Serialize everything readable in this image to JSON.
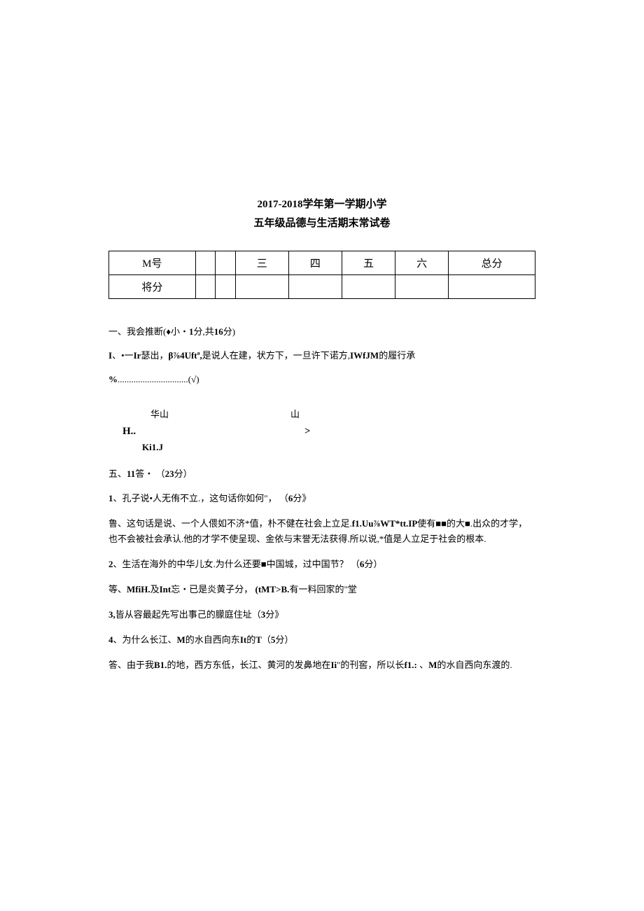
{
  "title": {
    "line1": "2017-2018学年第一学期小学",
    "line2": "五年级品德与生活期末常试卷"
  },
  "score_table": {
    "row1": [
      "M号",
      "",
      "",
      "三",
      "四",
      "五",
      "六",
      "总分"
    ],
    "row2": [
      "将分",
      "",
      "",
      "",
      "",
      "",
      "",
      ""
    ]
  },
  "section1": {
    "heading_prefix": "一、我会推断(♦小・",
    "heading_bold1": "1",
    "heading_mid": "分,共",
    "heading_bold2": "16",
    "heading_suffix": "分)"
  },
  "line_I": {
    "b1": "I",
    "t1": "、•一",
    "b2": "Ir",
    "t2": "瑟出，",
    "b3": "β⅞4Uftª,",
    "t3": "是说人在建，状方下，一旦许下诺方,",
    "b4": "IWfJM",
    "t4": "的履行承"
  },
  "line_pct": {
    "b1": "%",
    "t1": "...............................(√)"
  },
  "mountain": {
    "r1c1": "华山",
    "r1c2": "山",
    "r2c1": "H..",
    "r2c2": ">",
    "r3": "Ki1.J"
  },
  "section5": {
    "prefix": "五、",
    "b1": "11",
    "mid": "答・ （",
    "b2": "23",
    "suffix": "分）"
  },
  "q1": {
    "b1": "1",
    "t1": "、孔子说•人无侑不立.，这句话你如何\"，  （",
    "b2": "6",
    "t2": "分》"
  },
  "q1_ans": {
    "t1": "鲁、这句话是说、一个人偎如不济*值，朴不健在社会上立足.",
    "b1": "f1.Uu⅞WT*tt.IP",
    "t2": "使有■■的大■.出众的才学，也不会被社会承认.他的才学不使呈现、金依与末誉无法获得.所以说,*值是人立足于社会的根本."
  },
  "q2": {
    "b1": "2",
    "t1": "、生活在海外的中华儿女.为什么还要■中国城，过中国节？ （",
    "b2": "6",
    "t2": "分）"
  },
  "q2_ans": {
    "t1": "等、",
    "b1": "MfiH.",
    "t2": "及",
    "b2": "Int",
    "t3": "忘・已是炎黄子分，  ",
    "b3": "(tMT>B.",
    "t4": "有一料回家的\"堂"
  },
  "q3": {
    "b1": "3,",
    "t1": "皆从容最起先写出事己的朦庭住址（",
    "b2": "3",
    "t2": "分》"
  },
  "q4": {
    "b1": "4",
    "t1": "、为什么长江、",
    "b2": "M",
    "t2": "的水自西向东",
    "b3": "It",
    "t3": "的",
    "b4": "T",
    "t4": "（",
    "b5": "5",
    "t5": "分）"
  },
  "q4_ans": {
    "t1": "答、由于我",
    "b1": "B1.",
    "t2": "的地，西方东低，长江、黄河的发鼻地在",
    "b2": "Ii",
    "t3": "\"的刊窖，所以长",
    "b3": "f1.:",
    "t4": " 、",
    "b4": "M",
    "t5": "的水自西向东渡的."
  },
  "colors": {
    "text": "#000000",
    "background": "#ffffff",
    "border": "#000000"
  }
}
